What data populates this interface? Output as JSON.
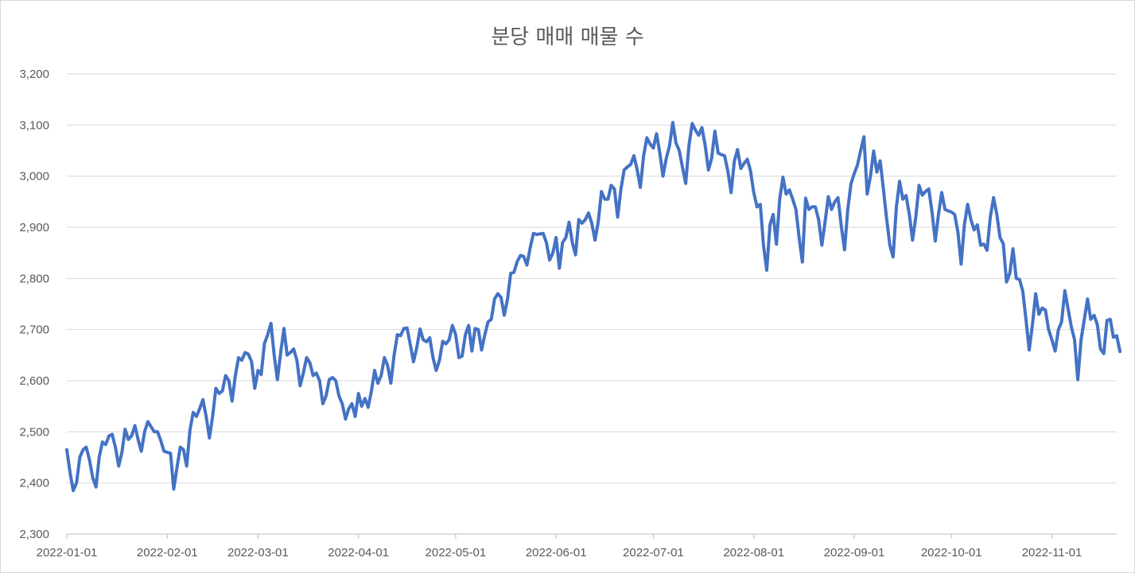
{
  "chart_data": {
    "type": "line",
    "title": "분당 매매 매물 수",
    "xlabel": "",
    "ylabel": "",
    "ylim": [
      2300,
      3200
    ],
    "yticks": [
      2300,
      2400,
      2500,
      2600,
      2700,
      2800,
      2900,
      3000,
      3100,
      3200
    ],
    "ytick_labels": [
      "2,300",
      "2,400",
      "2,500",
      "2,600",
      "2,700",
      "2,800",
      "2,900",
      "3,000",
      "3,100",
      "3,200"
    ],
    "xticks": [
      "2022-01-01",
      "2022-02-01",
      "2022-03-01",
      "2022-04-01",
      "2022-05-01",
      "2022-06-01",
      "2022-07-01",
      "2022-08-01",
      "2022-09-01",
      "2022-10-01",
      "2022-11-01"
    ],
    "x_start": "2022-01-01",
    "x_end": "2022-11-21",
    "grid": true,
    "line_color": "#4472c4",
    "series": [
      {
        "values": [
          2465,
          2420,
          2385,
          2400,
          2450,
          2465,
          2470,
          2445,
          2410,
          2392,
          2450,
          2480,
          2475,
          2492,
          2495,
          2470,
          2433,
          2460,
          2505,
          2485,
          2492,
          2512,
          2485,
          2462,
          2500,
          2520,
          2510,
          2500,
          2500,
          2483,
          2462,
          2460,
          2458,
          2388,
          2430,
          2470,
          2465,
          2433,
          2503,
          2538,
          2530,
          2545,
          2563,
          2530,
          2488,
          2530,
          2585,
          2575,
          2580,
          2610,
          2600,
          2560,
          2610,
          2645,
          2640,
          2655,
          2652,
          2638,
          2585,
          2620,
          2612,
          2673,
          2690,
          2712,
          2650,
          2602,
          2655,
          2702,
          2650,
          2655,
          2662,
          2640,
          2590,
          2615,
          2645,
          2635,
          2610,
          2615,
          2600,
          2555,
          2570,
          2602,
          2606,
          2600,
          2570,
          2555,
          2525,
          2545,
          2555,
          2530,
          2575,
          2550,
          2565,
          2548,
          2580,
          2620,
          2595,
          2610,
          2645,
          2630,
          2595,
          2650,
          2690,
          2688,
          2702,
          2703,
          2670,
          2637,
          2665,
          2701,
          2680,
          2676,
          2684,
          2645,
          2620,
          2640,
          2677,
          2672,
          2680,
          2708,
          2690,
          2645,
          2648,
          2690,
          2708,
          2658,
          2702,
          2700,
          2660,
          2690,
          2715,
          2720,
          2760,
          2770,
          2763,
          2728,
          2760,
          2810,
          2812,
          2833,
          2845,
          2843,
          2826,
          2860,
          2888,
          2886,
          2887,
          2888,
          2870,
          2836,
          2850,
          2880,
          2820,
          2870,
          2880,
          2910,
          2870,
          2846,
          2915,
          2908,
          2915,
          2928,
          2908,
          2875,
          2910,
          2970,
          2955,
          2955,
          2982,
          2975,
          2920,
          2975,
          3012,
          3018,
          3023,
          3040,
          3013,
          2978,
          3040,
          3075,
          3063,
          3055,
          3083,
          3045,
          3000,
          3035,
          3060,
          3105,
          3065,
          3050,
          3017,
          2986,
          3060,
          3103,
          3090,
          3080,
          3095,
          3060,
          3012,
          3035,
          3088,
          3045,
          3042,
          3040,
          3010,
          2968,
          3030,
          3052,
          3015,
          3025,
          3033,
          3010,
          2968,
          2940,
          2945,
          2865,
          2816,
          2905,
          2925,
          2867,
          2955,
          2998,
          2965,
          2973,
          2955,
          2935,
          2880,
          2832,
          2957,
          2935,
          2940,
          2940,
          2915,
          2865,
          2910,
          2960,
          2935,
          2950,
          2958,
          2903,
          2856,
          2935,
          2985,
          3005,
          3022,
          3050,
          3077,
          2965,
          3000,
          3049,
          3008,
          3030,
          2975,
          2917,
          2865,
          2842,
          2940,
          2990,
          2955,
          2962,
          2925,
          2875,
          2920,
          2982,
          2963,
          2970,
          2975,
          2930,
          2873,
          2925,
          2968,
          2935,
          2932,
          2930,
          2925,
          2890,
          2828,
          2905,
          2945,
          2915,
          2895,
          2905,
          2865,
          2867,
          2855,
          2920,
          2958,
          2925,
          2880,
          2868,
          2793,
          2810,
          2858,
          2800,
          2798,
          2775,
          2720,
          2660,
          2710,
          2770,
          2730,
          2742,
          2738,
          2700,
          2680,
          2658,
          2700,
          2715,
          2776,
          2740,
          2705,
          2680,
          2602,
          2680,
          2720,
          2760,
          2720,
          2728,
          2710,
          2662,
          2653,
          2718,
          2720,
          2685,
          2688,
          2657
        ]
      }
    ]
  }
}
